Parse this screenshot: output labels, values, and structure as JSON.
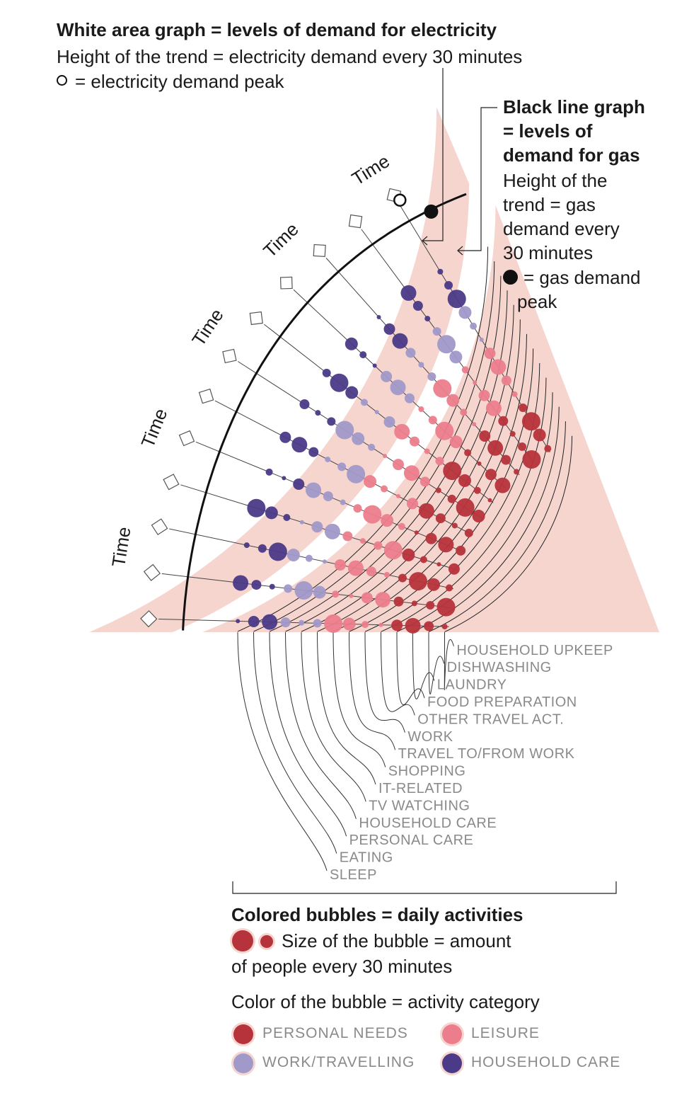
{
  "colors": {
    "band": "#f6d5cf",
    "personal_needs": "#b7333b",
    "leisure": "#ec7d8c",
    "work_travelling": "#a099c9",
    "household_care": "#4a3a87"
  },
  "legend_top": {
    "title": "White area graph =  levels of demand for electricity",
    "line1": "Height of the trend = electricity demand every 30 minutes",
    "line2": "= electricity demand peak"
  },
  "legend_right": {
    "line1": "Black line graph",
    "line2": "=  levels of",
    "line3": "demand for gas",
    "line4": "Height of the",
    "line5": "trend = gas",
    "line6": "demand every",
    "line7": "30 minutes",
    "line8": "= gas demand",
    "line9": "peak"
  },
  "time_labels": [
    "Time",
    "Time",
    "Time",
    "Time",
    "Time"
  ],
  "activities": [
    {
      "label": "SLEEP",
      "category": "household_care"
    },
    {
      "label": "EATING",
      "category": "household_care"
    },
    {
      "label": "PERSONAL CARE",
      "category": "household_care"
    },
    {
      "label": "HOUSEHOLD CARE",
      "category": "work_travelling"
    },
    {
      "label": "TV WATCHING",
      "category": "work_travelling"
    },
    {
      "label": "IT-RELATED",
      "category": "work_travelling"
    },
    {
      "label": "SHOPPING",
      "category": "leisure"
    },
    {
      "label": "TRAVEL TO/FROM WORK",
      "category": "leisure"
    },
    {
      "label": "WORK",
      "category": "leisure"
    },
    {
      "label": "OTHER TRAVEL ACT.",
      "category": "leisure"
    },
    {
      "label": "FOOD PREPARATION",
      "category": "personal_needs"
    },
    {
      "label": "LAUNDRY",
      "category": "personal_needs"
    },
    {
      "label": "DISHWASHING",
      "category": "personal_needs"
    },
    {
      "label": "HOUSEHOLD UPKEEP",
      "category": "personal_needs"
    }
  ],
  "legend_bottom": {
    "title": "Colored bubbles = daily activities",
    "size_line1": "Size of the bubble = amount",
    "size_line2": "of people every 30 minutes",
    "color_line": "Color of the bubble = activity category",
    "categories": [
      {
        "label": "PERSONAL NEEDS",
        "color": "#b7333b"
      },
      {
        "label": "LEISURE",
        "color": "#ec7d8c"
      },
      {
        "label": "WORK/TRAVELLING",
        "color": "#a099c9"
      },
      {
        "label": "HOUSEHOLD CARE",
        "color": "#4a3a87"
      }
    ]
  }
}
